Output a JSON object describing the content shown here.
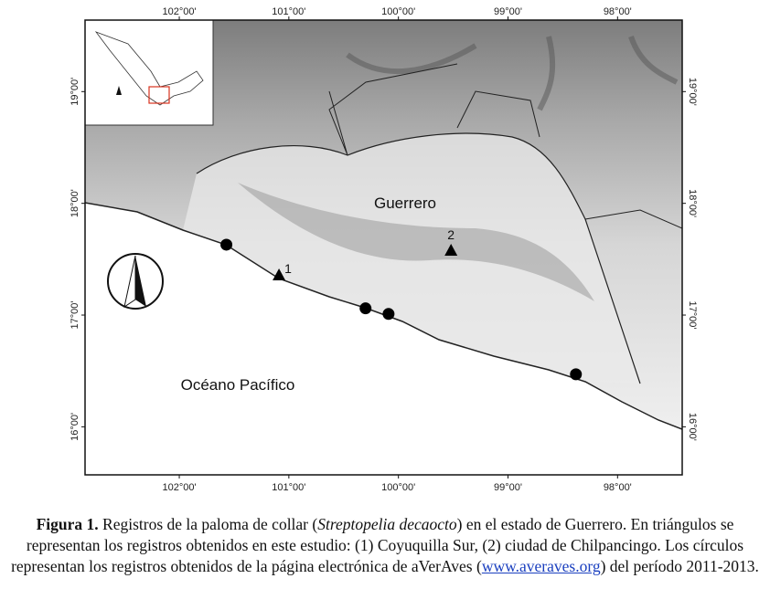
{
  "map": {
    "xlim": [
      102.86,
      97.41
    ],
    "ylim": [
      15.57,
      19.64
    ],
    "xticks": [
      {
        "value": 102,
        "label": "102°00'"
      },
      {
        "value": 101,
        "label": "101°00'"
      },
      {
        "value": 100,
        "label": "100°00'"
      },
      {
        "value": 99,
        "label": "99°00'"
      },
      {
        "value": 98,
        "label": "98°00'"
      }
    ],
    "yticks": [
      {
        "value": 19,
        "label": "19°00'"
      },
      {
        "value": 18,
        "label": "18°00'"
      },
      {
        "value": 17,
        "label": "17°00'"
      },
      {
        "value": 16,
        "label": "16°00'"
      }
    ],
    "state_label": "Guerrero",
    "ocean_label": "Océano Pacífico",
    "triangles": [
      {
        "label": "1",
        "lon": 101.09,
        "lat": 17.36
      },
      {
        "label": "2",
        "lon": 99.52,
        "lat": 17.58
      }
    ],
    "circles": [
      {
        "lon": 101.57,
        "lat": 17.63
      },
      {
        "lon": 100.3,
        "lat": 17.06
      },
      {
        "lon": 100.09,
        "lat": 17.01
      },
      {
        "lon": 98.38,
        "lat": 16.47
      }
    ]
  },
  "caption": {
    "figure": "Figura 1.",
    "text_1": " Registros de la paloma de collar (",
    "species": "Streptopelia decaocto",
    "text_2": ") en el estado de Guerrero. En triángulos se representan los registros obtenidos en este estudio: (1) Coyuquilla Sur, (2) ciudad de Chilpancingo. Los círculos representan los registros obtenidos de la página electrónica de aVerAves (",
    "link": "www.averaves.org",
    "text_3": ") del período 2011-2013."
  }
}
